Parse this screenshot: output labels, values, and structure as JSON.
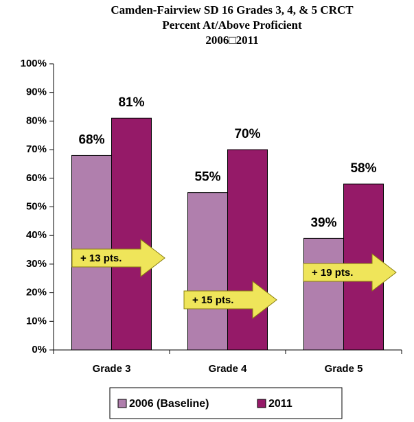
{
  "chart_data": {
    "type": "bar",
    "title": [
      "Camden-Fairview SD 16 Grades 3, 4, & 5 CRCT",
      "Percent At/Above Proficient",
      "2006□2011"
    ],
    "categories": [
      "Grade 3",
      "Grade 4",
      "Grade 5"
    ],
    "series": [
      {
        "name": "2006 (Baseline)",
        "color": "#b07fad",
        "values": [
          68,
          55,
          39
        ],
        "value_labels": [
          "68%",
          "55%",
          "39%"
        ]
      },
      {
        "name": "2011",
        "color": "#951a68",
        "values": [
          81,
          70,
          58
        ],
        "value_labels": [
          "81%",
          "70%",
          "58%"
        ]
      }
    ],
    "annotations": [
      "+ 13 pts.",
      "+ 15 pts.",
      "+ 19 pts."
    ],
    "ylim": [
      0,
      100
    ],
    "yticks": [
      {
        "value": 0,
        "label": "0%"
      },
      {
        "value": 10,
        "label": "10%"
      },
      {
        "value": 20,
        "label": "20%"
      },
      {
        "value": 30,
        "label": "30%"
      },
      {
        "value": 40,
        "label": "40%"
      },
      {
        "value": 50,
        "label": "50%"
      },
      {
        "value": 60,
        "label": "60%"
      },
      {
        "value": 70,
        "label": "70%"
      },
      {
        "value": 80,
        "label": "80%"
      },
      {
        "value": 90,
        "label": "90%"
      },
      {
        "value": 100,
        "label": "100%"
      }
    ],
    "grid": false,
    "legend": "bottom"
  }
}
